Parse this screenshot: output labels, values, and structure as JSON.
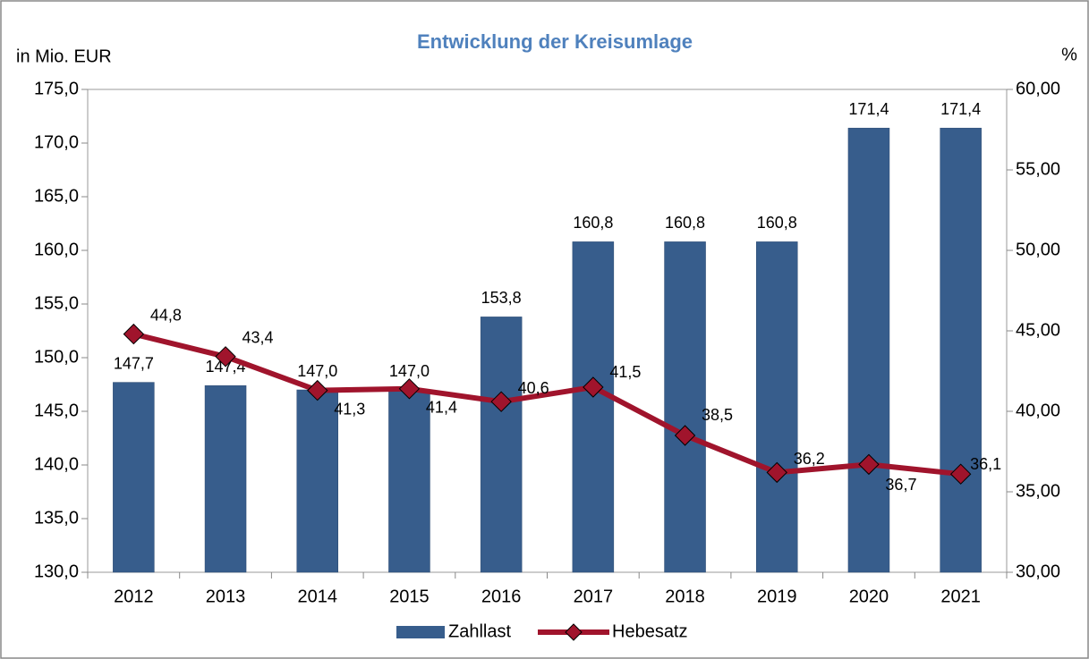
{
  "chart_data": {
    "type": "bar_line",
    "title": "Entwicklung der Kreisumlage",
    "y_label": "in Mio. EUR",
    "y2_label": "%",
    "categories": [
      "2012",
      "2013",
      "2014",
      "2015",
      "2016",
      "2017",
      "2018",
      "2019",
      "2020",
      "2021"
    ],
    "series": [
      {
        "name": "Zahllast",
        "type": "bar",
        "color": "#375d8c",
        "values": [
          147.7,
          147.4,
          147.0,
          147.0,
          153.8,
          160.8,
          160.8,
          160.8,
          171.4,
          171.4
        ],
        "value_labels": [
          "147,7",
          "147,4",
          "147,0",
          "147,0",
          "153,8",
          "160,8",
          "160,8",
          "160,8",
          "171,4",
          "171,4"
        ]
      },
      {
        "name": "Hebesatz",
        "type": "line",
        "axis": "y2",
        "color": "#a0142c",
        "values": [
          44.8,
          43.4,
          41.3,
          41.4,
          40.6,
          41.5,
          38.5,
          36.2,
          36.7,
          36.1
        ],
        "value_labels": [
          "44,8",
          "43,4",
          "41,3",
          "41,4",
          "40,6",
          "41,5",
          "38,5",
          "36,2",
          "36,7",
          "36,1"
        ]
      }
    ],
    "ylim": [
      130,
      175
    ],
    "yticks": [
      {
        "value": 130,
        "label": "130,0"
      },
      {
        "value": 135,
        "label": "135,0"
      },
      {
        "value": 140,
        "label": "140,0"
      },
      {
        "value": 145,
        "label": "145,0"
      },
      {
        "value": 150,
        "label": "150,0"
      },
      {
        "value": 155,
        "label": "155,0"
      },
      {
        "value": 160,
        "label": "160,0"
      },
      {
        "value": 165,
        "label": "165,0"
      },
      {
        "value": 170,
        "label": "170,0"
      },
      {
        "value": 175,
        "label": "175,0"
      }
    ],
    "y2lim": [
      30,
      60
    ],
    "y2ticks": [
      {
        "value": 30,
        "label": "30,00"
      },
      {
        "value": 35,
        "label": "35,00"
      },
      {
        "value": 40,
        "label": "40,00"
      },
      {
        "value": 45,
        "label": "45,00"
      },
      {
        "value": 50,
        "label": "50,00"
      },
      {
        "value": 55,
        "label": "55,00"
      },
      {
        "value": 60,
        "label": "60,00"
      }
    ],
    "grid": false,
    "legend": "bottom"
  }
}
